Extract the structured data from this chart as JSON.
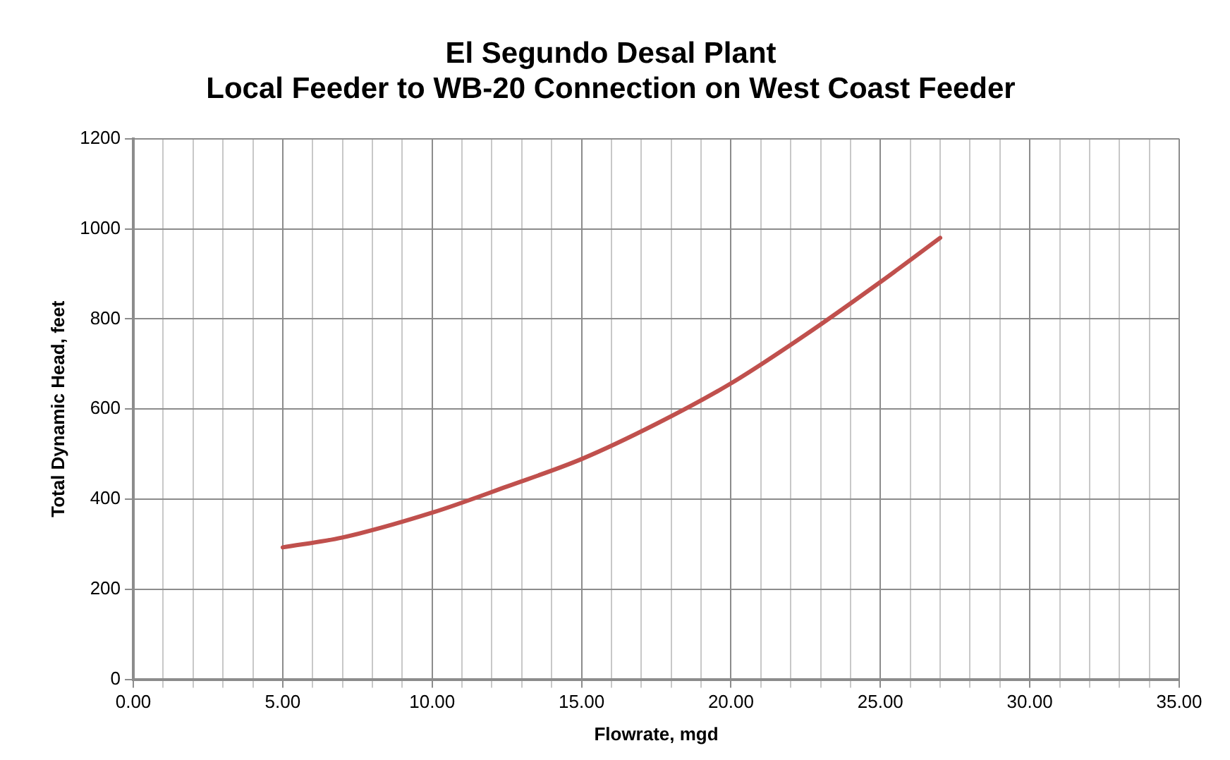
{
  "chart_data": {
    "type": "line",
    "title": [
      "El Segundo Desal Plant",
      "Local Feeder to WB-20 Connection on West Coast Feeder"
    ],
    "xlabel": "Flowrate, mgd",
    "ylabel": "Total Dynamic Head, feet",
    "x": [
      5,
      7,
      10,
      12.5,
      15,
      17.5,
      20,
      22.5,
      25,
      27
    ],
    "series": [
      {
        "color": "#c0504d",
        "values": [
          293,
          315,
          370,
          428,
          489,
          567,
          657,
          765,
          882,
          980
        ]
      }
    ],
    "xlim": [
      0,
      35
    ],
    "xticks": [
      {
        "value": 0,
        "label": "0.00"
      },
      {
        "value": 1,
        "label": null
      },
      {
        "value": 2,
        "label": null
      },
      {
        "value": 3,
        "label": null
      },
      {
        "value": 4,
        "label": null
      },
      {
        "value": 5,
        "label": "5.00"
      },
      {
        "value": 6,
        "label": null
      },
      {
        "value": 7,
        "label": null
      },
      {
        "value": 8,
        "label": null
      },
      {
        "value": 9,
        "label": null
      },
      {
        "value": 10,
        "label": "10.00"
      },
      {
        "value": 11,
        "label": null
      },
      {
        "value": 12,
        "label": null
      },
      {
        "value": 13,
        "label": null
      },
      {
        "value": 14,
        "label": null
      },
      {
        "value": 15,
        "label": "15.00"
      },
      {
        "value": 16,
        "label": null
      },
      {
        "value": 17,
        "label": null
      },
      {
        "value": 18,
        "label": null
      },
      {
        "value": 19,
        "label": null
      },
      {
        "value": 20,
        "label": "20.00"
      },
      {
        "value": 21,
        "label": null
      },
      {
        "value": 22,
        "label": null
      },
      {
        "value": 23,
        "label": null
      },
      {
        "value": 24,
        "label": null
      },
      {
        "value": 25,
        "label": "25.00"
      },
      {
        "value": 26,
        "label": null
      },
      {
        "value": 27,
        "label": null
      },
      {
        "value": 28,
        "label": null
      },
      {
        "value": 29,
        "label": null
      },
      {
        "value": 30,
        "label": "30.00"
      },
      {
        "value": 31,
        "label": null
      },
      {
        "value": 32,
        "label": null
      },
      {
        "value": 33,
        "label": null
      },
      {
        "value": 34,
        "label": null
      },
      {
        "value": 35,
        "label": "35.00"
      }
    ],
    "ylim": [
      0,
      1200
    ],
    "yticks": [
      0,
      200,
      400,
      600,
      800,
      1000,
      1200
    ],
    "grid": true,
    "legend": false,
    "marker": "none",
    "line_style": "solid"
  }
}
